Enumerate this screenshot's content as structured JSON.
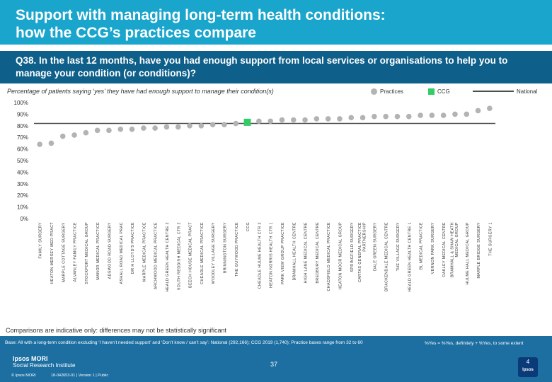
{
  "header": {
    "title_line1": "Support with managing long-term health conditions:",
    "title_line2": "how the CCG’s practices compare"
  },
  "question": "Q38. In the last 12 months, have you had enough support from local services or organisations to help you to manage your condition (or conditions)?",
  "subtitle": "Percentage of patients saying ‘yes’ they have had enough support to manage their condition(s)",
  "legend": {
    "practices": "Practices",
    "ccg": "CCG",
    "national": "National"
  },
  "comparison_note": "Comparisons are indicative only: differences may not be statistically significant",
  "footer": {
    "base_text": "Base: All with a long-term condition excluding ‘I haven’t needed support’ and ‘Don’t know / can’t say’: National (292,166); CCG 2019 (1,740); Practice bases range from 32 to 60",
    "yes_note": "%Yes = %Yes, definitely + %Yes, to some extent",
    "page_number": "37",
    "brand_line1": "Ipsos MORI",
    "brand_line2": "Social Research Institute",
    "copyright": "© Ipsos MORI",
    "job_ref": "18-042653-01 | Version 1 | Public",
    "logo_number": "4",
    "logo_word": "Ipsos"
  },
  "colors": {
    "header_bg": "#1aa5cc",
    "question_bg": "#0e5f8a",
    "footer_bg": "#1d6fa2",
    "practice_marker": "#b3b3b3",
    "ccg_marker": "#33cc66",
    "national_line": "#4d4d4d"
  },
  "chart_data": {
    "type": "scatter",
    "title": "Percentage of patients saying ‘yes’ they have had enough support to manage their condition(s)",
    "ylabel": "",
    "xlabel": "",
    "ylim": [
      0,
      100
    ],
    "yticks": [
      0,
      10,
      20,
      30,
      40,
      50,
      60,
      70,
      80,
      90,
      100
    ],
    "ytick_labels": [
      "0%",
      "10%",
      "20%",
      "30%",
      "40%",
      "50%",
      "60%",
      "70%",
      "80%",
      "90%",
      "100%"
    ],
    "national_value": 82,
    "ccg_category": "CCG",
    "categories": [
      "FAMILY SURGERY",
      "HEATON MERSEY MED PRACT",
      "MARPLE COTTAGE SURGERY",
      "ALVANLEY FAMILY PRACTICE",
      "STOCKPORT MEDICAL GROUP",
      "MANOR MEDICAL PRACTICE",
      "ADSWOOD ROAD SURGERY",
      "ASHALL ROAD MEDICAL PRAC",
      "DR H LLOYD'S PRACTICE",
      "MARPLE MEDICAL PRACTICE",
      "ARCHWOOD MEDICAL PRACTICE",
      "HEALD GREEN HEALTH CENTRE 2",
      "SOUTH REDDISH MEDICAL CTR 2",
      "BEECH HOUSE MEDICAL PRACT",
      "CHEADLE MEDICAL PRACTICE",
      "WOODLEY VILLAGE SURGERY",
      "BRINNINGTON SURGERY",
      "THE GUYWOOD PRACTICE",
      "CCG",
      "CHEADLE HULME HEALTH CTR 2",
      "HEATON NORRIS HEALTH CTR 1",
      "PARK VIEW GROUP PRACTICE",
      "BRAMHALL HEALTH CENTRE",
      "HIGH LANE MEDICAL CENTRE",
      "BREDBURY MEDICAL CENTRE",
      "CHADSFIELD MEDICAL PRACTICE",
      "HEATON MOOR MEDICAL GROUP",
      "SPRINGFIELD SURGERY",
      "CARTAS GENERAL PRACTICE PARTNERSHIP",
      "DALE GREEN SURGERY",
      "BRACKENDALE MEDICAL CENTRE",
      "THE VILLAGE SURGERY",
      "HEALD GREEN HEALTH CENTRE 1",
      "BL MEDICAL PRACTICE",
      "VERNON PARK SURGERY",
      "OAKLEY MEDICAL CENTRE",
      "BRAMHALL & SHAW HEATH MEDICAL GROUP",
      "HULME HALL MEDICAL GROUP",
      "MARPLE BRIDGE SURGERY",
      "THE SURGERY 1"
    ],
    "values": [
      64,
      65,
      71,
      72,
      74,
      76,
      76,
      77,
      77,
      78,
      78,
      79,
      79,
      80,
      80,
      81,
      81,
      82,
      83,
      84,
      84,
      85,
      85,
      85,
      86,
      86,
      86,
      87,
      87,
      88,
      88,
      88,
      88,
      89,
      89,
      89,
      90,
      90,
      93,
      95
    ]
  }
}
